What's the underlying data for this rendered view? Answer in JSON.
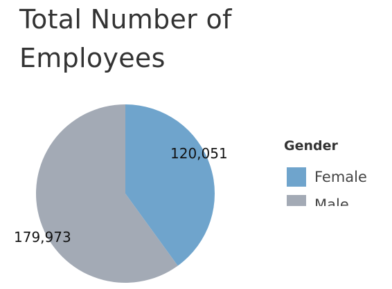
{
  "chart_data": {
    "type": "pie",
    "title": "Total Number of Employees",
    "categories": [
      "Female",
      "Male"
    ],
    "values": [
      120051,
      179973
    ],
    "value_labels": [
      "120,051",
      "179,973"
    ],
    "colors": [
      "#6fa4cc",
      "#a3aab5"
    ],
    "legend": {
      "title": "Gender",
      "placement": "right"
    }
  }
}
